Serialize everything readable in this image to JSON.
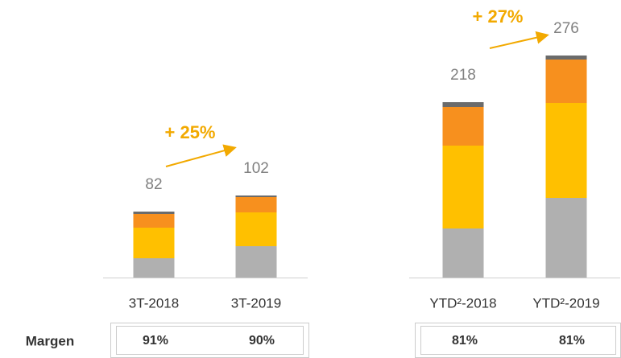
{
  "chart_data": {
    "type": "stacked_bar",
    "categories": [
      "3T-2018",
      "3T-2019",
      "YTD²-2018",
      "YTD²-2019"
    ],
    "series": [
      {
        "color": "#b0b0b0",
        "values": [
          24,
          39,
          61,
          99
        ]
      },
      {
        "color": "#ffc000",
        "values": [
          38,
          42,
          103,
          118
        ]
      },
      {
        "color": "#f7901e",
        "values": [
          17,
          19,
          48,
          54
        ]
      },
      {
        "color": "#6b6b6b",
        "values": [
          3,
          2,
          6,
          5
        ]
      }
    ],
    "totals": [
      82,
      102,
      218,
      276
    ],
    "annotations": [
      "+ 25%",
      "+ 27%"
    ],
    "margin_row": {
      "label": "Margen",
      "values": [
        "91%",
        "90%",
        "81%",
        "81%"
      ]
    }
  }
}
